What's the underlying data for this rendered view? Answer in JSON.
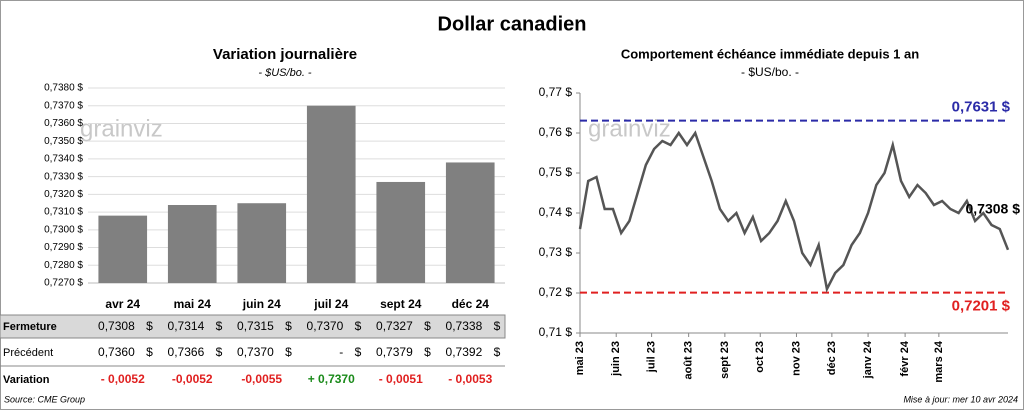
{
  "title": "Dollar canadien",
  "chart_data": [
    {
      "type": "bar",
      "title": "Variation  journalière",
      "subtitle": "- $US/bo. -",
      "watermark": "grainviz",
      "categories": [
        "avr 24",
        "mai 24",
        "juin 24",
        "juil 24",
        "sept 24",
        "déc 24"
      ],
      "values": [
        0.7308,
        0.7314,
        0.7315,
        0.737,
        0.7327,
        0.7338
      ],
      "value_labels": [
        "0,7308",
        "0,7314",
        "0,7315",
        "0,7370",
        "0,7327",
        "0,7338"
      ],
      "color": "#808080",
      "ylim": [
        0.727,
        0.738
      ],
      "yticks": [
        {
          "value": 0.727,
          "label": "0,7270 $"
        },
        {
          "value": 0.728,
          "label": "0,7280 $"
        },
        {
          "value": 0.729,
          "label": "0,7290 $"
        },
        {
          "value": 0.73,
          "label": "0,7300 $"
        },
        {
          "value": 0.731,
          "label": "0,7310 $"
        },
        {
          "value": 0.732,
          "label": "0,7320 $"
        },
        {
          "value": 0.733,
          "label": "0,7330 $"
        },
        {
          "value": 0.734,
          "label": "0,7340 $"
        },
        {
          "value": 0.735,
          "label": "0,7350 $"
        },
        {
          "value": 0.736,
          "label": "0,7360 $"
        },
        {
          "value": 0.737,
          "label": "0,7370 $"
        },
        {
          "value": 0.738,
          "label": "0,7380 $"
        }
      ],
      "grid": true
    },
    {
      "type": "line",
      "title": "Comportement échéance immédiate depuis 1 an",
      "subtitle": "- $US/bo. -",
      "watermark": "grainviz",
      "values": [
        0.736,
        0.748,
        0.749,
        0.741,
        0.741,
        0.735,
        0.738,
        0.745,
        0.752,
        0.756,
        0.758,
        0.757,
        0.76,
        0.757,
        0.76,
        0.754,
        0.748,
        0.741,
        0.738,
        0.74,
        0.735,
        0.739,
        0.733,
        0.735,
        0.738,
        0.743,
        0.738,
        0.73,
        0.727,
        0.732,
        0.721,
        0.725,
        0.727,
        0.732,
        0.735,
        0.74,
        0.747,
        0.75,
        0.757,
        0.748,
        0.744,
        0.747,
        0.745,
        0.742,
        0.743,
        0.741,
        0.74,
        0.743,
        0.738,
        0.74,
        0.737,
        0.736,
        0.7308
      ],
      "color": "#555555",
      "xlim": [
        0,
        52
      ],
      "xticks": [
        {
          "value": 0,
          "label": "mai 23"
        },
        {
          "value": 4.4,
          "label": "juin 23"
        },
        {
          "value": 8.7,
          "label": "juil 23"
        },
        {
          "value": 13.2,
          "label": "août 23"
        },
        {
          "value": 17.6,
          "label": "sept 23"
        },
        {
          "value": 21.9,
          "label": "oct 23"
        },
        {
          "value": 26.3,
          "label": "nov 23"
        },
        {
          "value": 30.6,
          "label": "déc 23"
        },
        {
          "value": 35,
          "label": "janv 24"
        },
        {
          "value": 39.5,
          "label": "févr 24"
        },
        {
          "value": 43.6,
          "label": "mars 24"
        }
      ],
      "ylim": [
        0.71,
        0.77
      ],
      "yticks": [
        {
          "value": 0.71,
          "label": "0,71 $"
        },
        {
          "value": 0.72,
          "label": "0,72 $"
        },
        {
          "value": 0.73,
          "label": "0,73 $"
        },
        {
          "value": 0.74,
          "label": "0,74 $"
        },
        {
          "value": 0.75,
          "label": "0,75 $"
        },
        {
          "value": 0.76,
          "label": "0,76 $"
        },
        {
          "value": 0.77,
          "label": "0,77 $"
        }
      ],
      "reference_lines": [
        {
          "value": 0.7631,
          "label": "0,7631 $",
          "color": "#2b2ba8"
        },
        {
          "value": 0.7201,
          "label": "0,7201 $",
          "color": "#e02020"
        }
      ],
      "last_label": "0,7308 $"
    }
  ],
  "table": {
    "unit": "$",
    "rows": [
      {
        "label": "Fermeture"
      },
      {
        "label": "Précédent",
        "values": [
          "0,7360",
          "0,7366",
          "0,7370",
          "-",
          "0,7379",
          "0,7392"
        ]
      },
      {
        "label": "Variation",
        "values": [
          "- 0,0052",
          "-0,0052",
          "-0,0055",
          "+ 0,7370",
          "- 0,0051",
          "- 0,0053"
        ],
        "colors": [
          "#e02020",
          "#e02020",
          "#e02020",
          "#1a8a1a",
          "#e02020",
          "#e02020"
        ]
      }
    ]
  },
  "footer": {
    "source": "Source: CME Group",
    "updated": "Mise à jour: mer 10 avr 2024"
  }
}
